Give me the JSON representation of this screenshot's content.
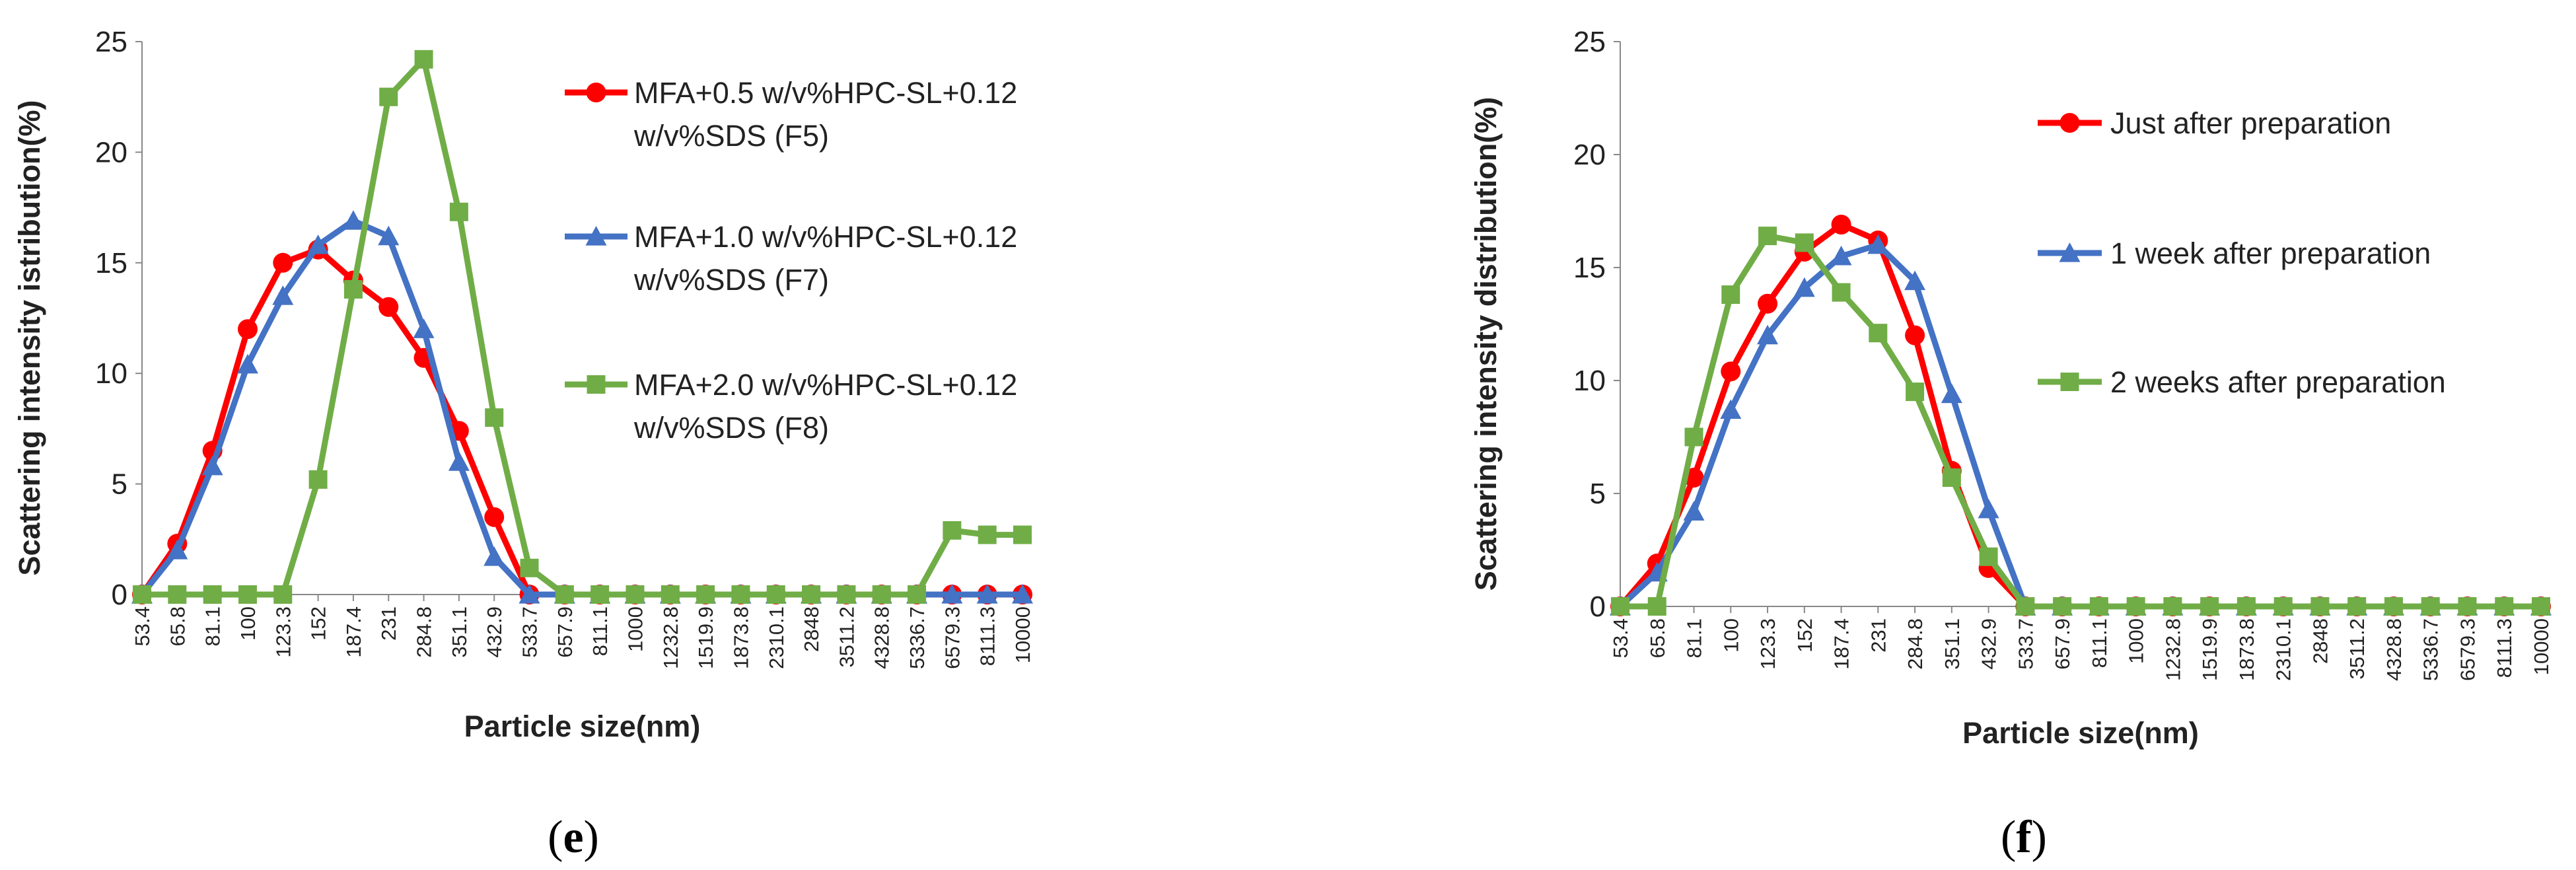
{
  "panels": [
    {
      "label_open": "(",
      "label_letter": "e",
      "label_close": ")"
    },
    {
      "label_open": "(",
      "label_letter": "f",
      "label_close": ")"
    }
  ],
  "chart_data": [
    {
      "type": "line",
      "title": "",
      "xlabel": "Particle size(nm)",
      "ylabel": "Scattering intensity istribution(%)",
      "ylim": [
        0,
        25
      ],
      "yticks": [
        0,
        5,
        10,
        15,
        20,
        25
      ],
      "grid": false,
      "legend_placement": "right",
      "x": [
        "53.4",
        "65.8",
        "81.1",
        "100",
        "123.3",
        "152",
        "187.4",
        "231",
        "284.8",
        "351.1",
        "432.9",
        "533.7",
        "657.9",
        "811.1",
        "1000",
        "1232.8",
        "1519.9",
        "1873.8",
        "2310.1",
        "2848",
        "3511.2",
        "4328.8",
        "5336.7",
        "6579.3",
        "8111.3",
        "10000"
      ],
      "series": [
        {
          "name_lines": [
            "MFA+0.5 w/v%HPC-SL+0.12",
            "w/v%SDS (F5)"
          ],
          "color": "#ff0000",
          "marker": "circle",
          "values": [
            0,
            2.3,
            6.5,
            12,
            15,
            15.6,
            14.2,
            13,
            10.7,
            7.4,
            3.5,
            0,
            0,
            0,
            0,
            0,
            0,
            0,
            0,
            0,
            0,
            0,
            0,
            0,
            0,
            0
          ]
        },
        {
          "name_lines": [
            "MFA+1.0 w/v%HPC-SL+0.12",
            "w/v%SDS (F7)"
          ],
          "color": "#4472c4",
          "marker": "triangle",
          "values": [
            0,
            2,
            5.8,
            10.4,
            13.5,
            15.8,
            16.9,
            16.2,
            12,
            6,
            1.7,
            0,
            0,
            0,
            0,
            0,
            0,
            0,
            0,
            0,
            0,
            0,
            0,
            0,
            0,
            0
          ]
        },
        {
          "name_lines": [
            "MFA+2.0 w/v%HPC-SL+0.12",
            "w/v%SDS (F8)"
          ],
          "color": "#70ad47",
          "marker": "square",
          "values": [
            0,
            0,
            0,
            0,
            0,
            5.2,
            13.8,
            22.5,
            24.2,
            17.3,
            8,
            1.2,
            0,
            0,
            0,
            0,
            0,
            0,
            0,
            0,
            0,
            0,
            0,
            2.9,
            2.7,
            2.7
          ]
        }
      ]
    },
    {
      "type": "line",
      "title": "",
      "xlabel": "Particle size(nm)",
      "ylabel": "Scattering intensity distribution(%)",
      "ylim": [
        0,
        25
      ],
      "yticks": [
        0,
        5,
        10,
        15,
        20,
        25
      ],
      "grid": false,
      "legend_placement": "right",
      "x": [
        "53.4",
        "65.8",
        "81.1",
        "100",
        "123.3",
        "152",
        "187.4",
        "231",
        "284.8",
        "351.1",
        "432.9",
        "533.7",
        "657.9",
        "811.1",
        "1000",
        "1232.8",
        "1519.9",
        "1873.8",
        "2310.1",
        "2848",
        "3511.2",
        "4328.8",
        "5336.7",
        "6579.3",
        "8111.3",
        "10000"
      ],
      "series": [
        {
          "name_lines": [
            "Just after preparation"
          ],
          "color": "#ff0000",
          "marker": "circle",
          "values": [
            0,
            1.9,
            5.7,
            10.4,
            13.4,
            15.7,
            16.9,
            16.2,
            12,
            6,
            1.7,
            0,
            0,
            0,
            0,
            0,
            0,
            0,
            0,
            0,
            0,
            0,
            0,
            0,
            0,
            0
          ]
        },
        {
          "name_lines": [
            "1 week after preparation"
          ],
          "color": "#4472c4",
          "marker": "triangle",
          "values": [
            0,
            1.5,
            4.2,
            8.7,
            12,
            14.1,
            15.5,
            16,
            14.4,
            9.4,
            4.3,
            0,
            0,
            0,
            0,
            0,
            0,
            0,
            0,
            0,
            0,
            0,
            0,
            0,
            0,
            0
          ]
        },
        {
          "name_lines": [
            "2 weeks after preparation"
          ],
          "color": "#70ad47",
          "marker": "square",
          "values": [
            0,
            0,
            7.5,
            13.8,
            16.4,
            16.1,
            13.9,
            12.1,
            9.5,
            5.7,
            2.2,
            0,
            0,
            0,
            0,
            0,
            0,
            0,
            0,
            0,
            0,
            0,
            0,
            0,
            0,
            0
          ]
        }
      ]
    }
  ]
}
